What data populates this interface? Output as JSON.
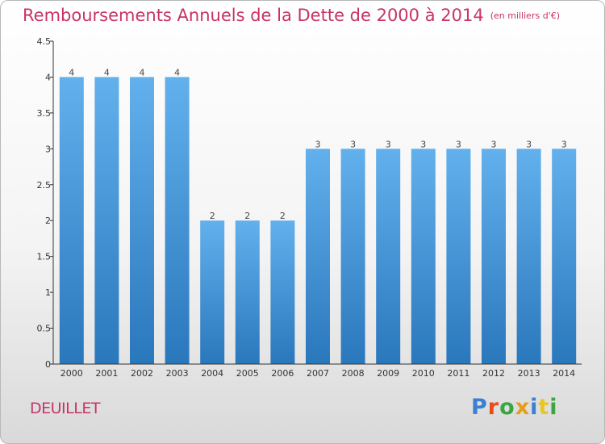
{
  "title": "Remboursements Annuels de la Dette de 2000 à 2014",
  "subtitle": "(en milliers d'€)",
  "town": "DEUILLET",
  "logo": {
    "text": "Proxiti",
    "colors": [
      "#3a7fd0",
      "#e84c1c",
      "#3aa640",
      "#e89c1c",
      "#3a7fd0",
      "#e8c81c",
      "#3aa640"
    ]
  },
  "colors": {
    "title": "#c8336a",
    "bar_light": "#62b0ec",
    "bar_dark": "#2a78bc",
    "axis": "#333333"
  },
  "chart_data": {
    "type": "bar",
    "title": "Remboursements Annuels de la Dette de 2000 à 2014",
    "xlabel": "",
    "ylabel": "",
    "categories": [
      "2000",
      "2001",
      "2002",
      "2003",
      "2004",
      "2005",
      "2006",
      "2007",
      "2008",
      "2009",
      "2010",
      "2011",
      "2012",
      "2013",
      "2014"
    ],
    "values": [
      4,
      4,
      4,
      4,
      2,
      2,
      2,
      3,
      3,
      3,
      3,
      3,
      3,
      3,
      3
    ],
    "data_labels": [
      "4",
      "4",
      "4",
      "4",
      "2",
      "2",
      "2",
      "3",
      "3",
      "3",
      "3",
      "3",
      "3",
      "3",
      "3"
    ],
    "ylim": [
      0,
      4.5
    ],
    "yticks": [
      0,
      0.5,
      1,
      1.5,
      2,
      2.5,
      3,
      3.5,
      4,
      4.5
    ],
    "ytick_labels": [
      "0",
      "0.5",
      "1",
      "1.5",
      "2",
      "2.5",
      "3",
      "3.5",
      "4",
      "4.5"
    ],
    "grid": false
  }
}
